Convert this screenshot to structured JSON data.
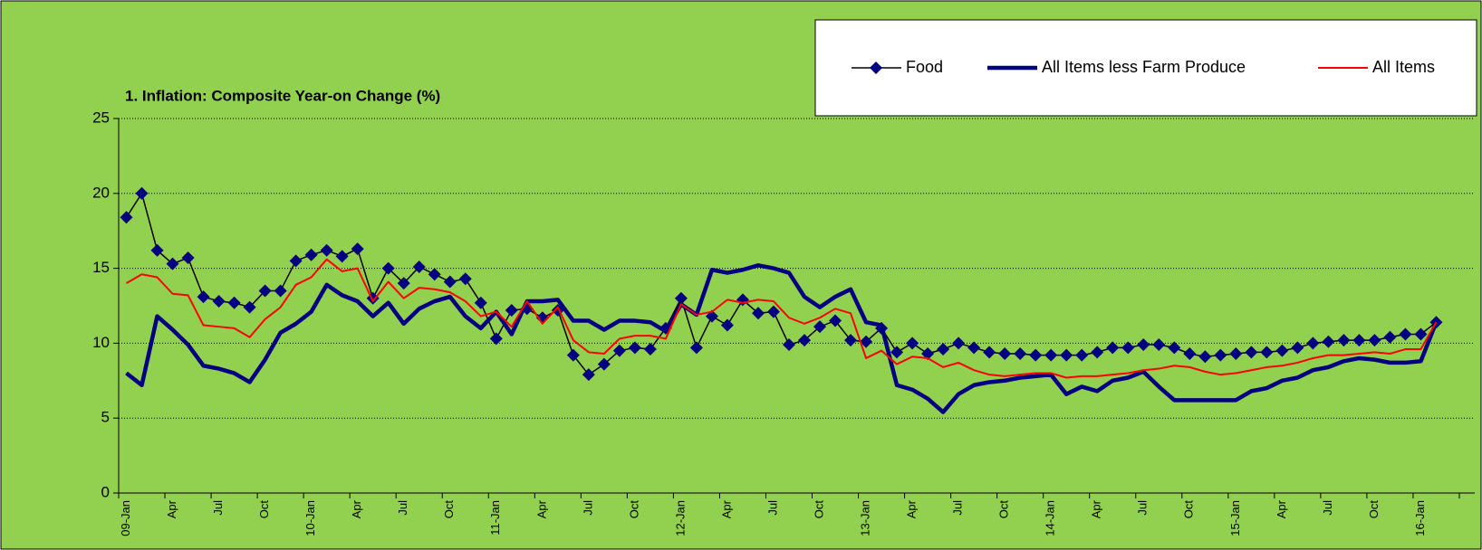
{
  "chart_data": {
    "type": "line",
    "title": "1. Inflation: Composite Year-on Change (%)",
    "categories": [
      "09-Jan",
      null,
      null,
      "Apr",
      null,
      null,
      "Jul",
      null,
      null,
      "Oct",
      null,
      null,
      "10-Jan",
      null,
      null,
      "Apr",
      null,
      null,
      "Jul",
      null,
      null,
      "Oct",
      null,
      null,
      "11-Jan",
      null,
      null,
      "Apr",
      null,
      null,
      "Jul",
      null,
      null,
      "Oct",
      null,
      null,
      "12-Jan",
      null,
      null,
      "Apr",
      null,
      null,
      "Jul",
      null,
      null,
      "Oct",
      null,
      null,
      "13-Jan",
      null,
      null,
      "Apr",
      null,
      null,
      "Jul",
      null,
      null,
      "Oct",
      null,
      null,
      "14-Jan",
      null,
      null,
      "Apr",
      null,
      null,
      "Jul",
      null,
      null,
      "Oct",
      null,
      null,
      "15-Jan",
      null,
      null,
      "Apr",
      null,
      null,
      "Jul",
      null,
      null,
      "Oct",
      null,
      null,
      "16-Jan",
      null,
      null,
      null
    ],
    "series": [
      {
        "name": "Food",
        "color": "#000000",
        "marker_color": "#000080",
        "line_width": 1.5,
        "marker": "diamond",
        "values": [
          18.4,
          20.0,
          16.2,
          15.3,
          15.7,
          13.1,
          12.8,
          12.7,
          12.4,
          13.5,
          13.5,
          15.5,
          15.9,
          16.2,
          15.8,
          16.3,
          13.0,
          15.0,
          14.0,
          15.1,
          14.6,
          14.1,
          14.3,
          12.7,
          10.3,
          12.2,
          12.3,
          11.7,
          12.2,
          9.2,
          7.9,
          8.6,
          9.5,
          9.7,
          9.6,
          11.0,
          13.0,
          9.7,
          11.8,
          11.2,
          12.9,
          12.0,
          12.1,
          9.9,
          10.2,
          11.1,
          11.5,
          10.2,
          10.1,
          11.0,
          9.4,
          10.0,
          9.3,
          9.6,
          10.0,
          9.7,
          9.4,
          9.3,
          9.3,
          9.2,
          9.2,
          9.2,
          9.2,
          9.4,
          9.7,
          9.7,
          9.9,
          9.9,
          9.7,
          9.3,
          9.1,
          9.2,
          9.3,
          9.4,
          9.4,
          9.5,
          9.7,
          10.0,
          10.1,
          10.2,
          10.2,
          10.2,
          10.4,
          10.6,
          10.6,
          11.4,
          null,
          null
        ]
      },
      {
        "name": "All Items less Farm Produce",
        "color": "#000080",
        "line_width": 4.5,
        "values": [
          8.0,
          7.2,
          11.8,
          10.9,
          9.9,
          8.5,
          8.3,
          8.0,
          7.4,
          8.9,
          10.7,
          11.3,
          12.1,
          13.9,
          13.2,
          12.8,
          11.8,
          12.7,
          11.3,
          12.3,
          12.8,
          13.1,
          11.8,
          11.0,
          12.1,
          10.6,
          12.8,
          12.8,
          12.9,
          11.5,
          11.5,
          10.9,
          11.5,
          11.5,
          11.4,
          10.8,
          12.6,
          11.9,
          14.9,
          14.7,
          14.9,
          15.2,
          15.0,
          14.7,
          13.1,
          12.4,
          13.1,
          13.6,
          11.4,
          11.2,
          7.2,
          6.9,
          6.3,
          5.4,
          6.6,
          7.2,
          7.4,
          7.5,
          7.7,
          7.8,
          7.9,
          6.6,
          7.1,
          6.8,
          7.5,
          7.7,
          8.1,
          7.1,
          6.2,
          6.2,
          6.2,
          6.2,
          6.2,
          6.8,
          7.0,
          7.5,
          7.7,
          8.2,
          8.4,
          8.8,
          9.0,
          8.9,
          8.7,
          8.7,
          8.8,
          11.4,
          null,
          null
        ]
      },
      {
        "name": "All Items",
        "color": "#ff0000",
        "line_width": 2,
        "values": [
          14.0,
          14.6,
          14.4,
          13.3,
          13.2,
          11.2,
          11.1,
          11.0,
          10.4,
          11.6,
          12.4,
          13.9,
          14.4,
          15.6,
          14.8,
          15.0,
          12.8,
          14.1,
          13.0,
          13.7,
          13.6,
          13.4,
          12.8,
          11.8,
          12.1,
          11.1,
          12.8,
          11.3,
          12.4,
          10.2,
          9.4,
          9.3,
          10.3,
          10.5,
          10.5,
          10.3,
          12.6,
          11.9,
          12.1,
          12.9,
          12.7,
          12.9,
          12.8,
          11.7,
          11.3,
          11.7,
          12.3,
          12.0,
          9.0,
          9.5,
          8.6,
          9.1,
          9.0,
          8.4,
          8.7,
          8.2,
          7.9,
          7.8,
          7.9,
          8.0,
          8.0,
          7.7,
          7.8,
          7.8,
          7.9,
          8.0,
          8.2,
          8.3,
          8.5,
          8.4,
          8.1,
          7.9,
          8.0,
          8.2,
          8.4,
          8.5,
          8.7,
          9.0,
          9.2,
          9.2,
          9.3,
          9.4,
          9.3,
          9.6,
          9.6,
          11.4,
          null,
          null
        ]
      }
    ],
    "ylim": [
      0,
      25
    ],
    "yticks": [
      0,
      5,
      10,
      15,
      20,
      25
    ],
    "grid": true,
    "legend": "top-right"
  }
}
